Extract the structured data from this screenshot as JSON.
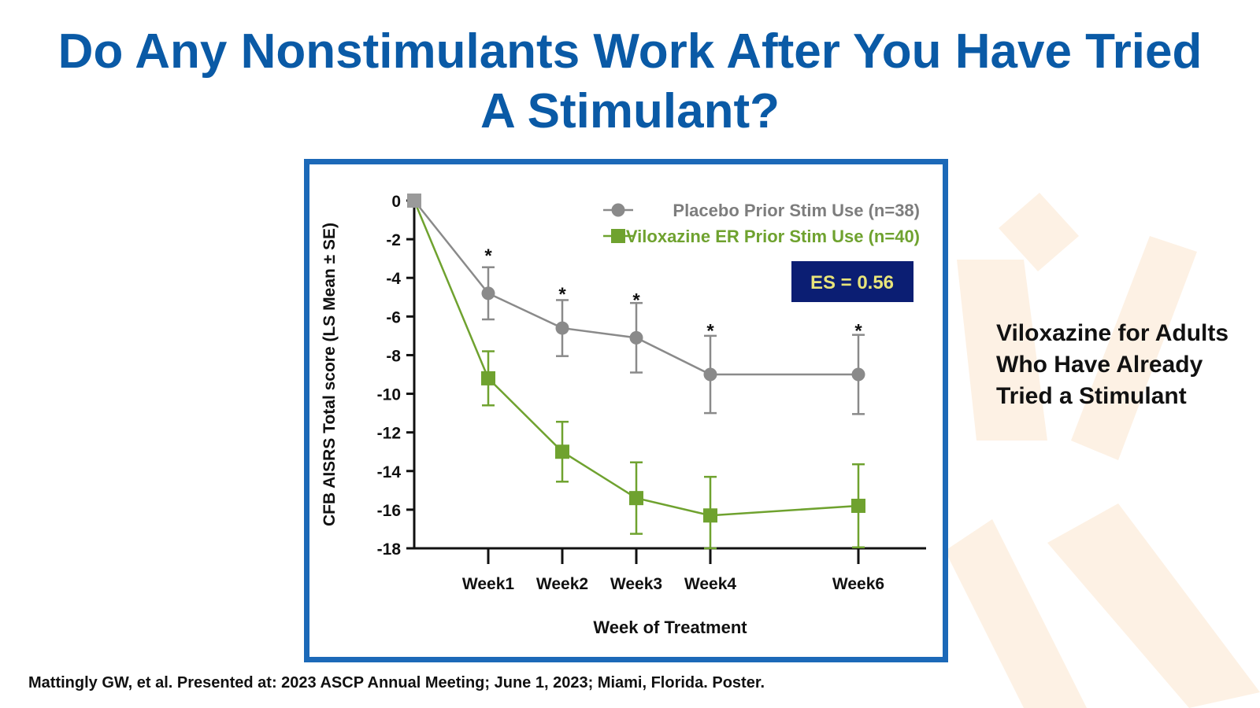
{
  "slide": {
    "title_line1": "Do Any Nonstimulants Work After You Have Tried",
    "title_line2": "A Stimulant?",
    "side_note": "Viloxazine for Adults Who Have Already Tried a Stimulant",
    "citation": "Mattingly GW, et al. Presented at: 2023 ASCP Annual Meeting; June 1, 2023; Miami, Florida. Poster."
  },
  "colors": {
    "title": "#0a5aa6",
    "frame": "#1c69b8",
    "placebo": "#8a8a8a",
    "placebo_legend_text": "#7d7d7d",
    "viloxazine": "#6fa22f",
    "es_box_bg": "#0b1e73",
    "es_box_text": "#e8e47a",
    "background_motif": "#fdf1e4"
  },
  "chart_data": {
    "type": "line",
    "title": "",
    "xlabel": "Week of Treatment",
    "ylabel": "CFB AISRS Total score (LS Mean ± SE)",
    "ylim": [
      -18,
      0
    ],
    "yticks": [
      "0",
      "-2",
      "-4",
      "-6",
      "-8",
      "-10",
      "-12",
      "-14",
      "-16",
      "-18"
    ],
    "yticks_values": [
      0,
      -2,
      -4,
      -6,
      -8,
      -10,
      -12,
      -14,
      -16,
      -18
    ],
    "x_weeks": [
      0,
      1,
      2,
      3,
      4,
      6
    ],
    "xticks": [
      {
        "week": 1,
        "label": "Week1"
      },
      {
        "week": 2,
        "label": "Week2"
      },
      {
        "week": 3,
        "label": "Week3"
      },
      {
        "week": 4,
        "label": "Week4"
      },
      {
        "week": 6,
        "label": "Week6"
      }
    ],
    "xlim": [
      0,
      7
    ],
    "series": [
      {
        "name": "Placebo Prior Stim Use (n=38)",
        "marker": "circle",
        "color": "#8a8a8a",
        "x": [
          0,
          1,
          2,
          3,
          4,
          6
        ],
        "values": [
          0,
          -4.8,
          -6.6,
          -7.1,
          -9.0,
          -9.0
        ],
        "se": [
          0,
          1.35,
          1.45,
          1.8,
          2.0,
          2.05
        ]
      },
      {
        "name": "Viloxazine ER Prior Stim Use (n=40)",
        "marker": "square",
        "color": "#6fa22f",
        "x": [
          0,
          1,
          2,
          3,
          4,
          6
        ],
        "values": [
          0,
          -9.2,
          -13.0,
          -15.4,
          -16.3,
          -15.8
        ],
        "se": [
          0,
          1.4,
          1.55,
          1.85,
          2.0,
          2.15
        ]
      }
    ],
    "significance": {
      "symbol": "*",
      "weeks": [
        1,
        2,
        3,
        4,
        6
      ],
      "y_values": [
        -2.6,
        -4.6,
        -4.9,
        -6.5,
        -6.5
      ]
    },
    "annotation": "ES = 0.56",
    "legend_position": "top-right",
    "grid": false
  }
}
